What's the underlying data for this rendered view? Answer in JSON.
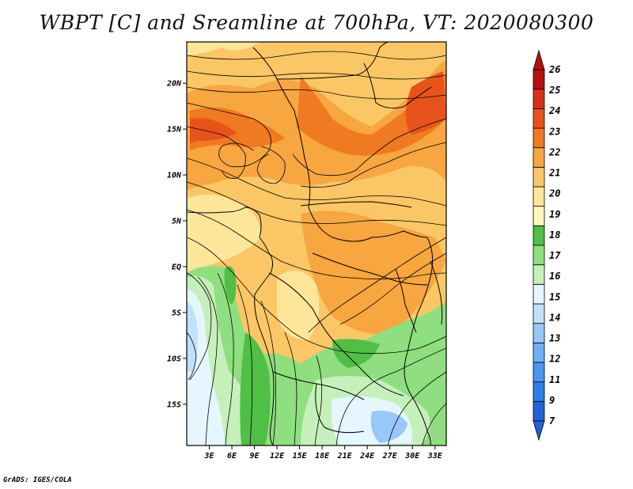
{
  "title": "WBPT [C] and Sreamline at 700hPa, VT: 2020080300",
  "credit": "GrADS: IGES/COLA",
  "map": {
    "lat_ticks": [
      "20N",
      "15N",
      "10N",
      "5N",
      "EQ",
      "5S",
      "10S",
      "15S"
    ],
    "lon_ticks": [
      "3E",
      "6E",
      "9E",
      "12E",
      "15E",
      "18E",
      "21E",
      "24E",
      "27E",
      "30E",
      "33E"
    ],
    "lon_range": [
      0,
      34.5
    ],
    "lat_range": [
      -19.5,
      24.5
    ]
  },
  "colorbar": {
    "labels": [
      "7",
      "9",
      "11",
      "12",
      "13",
      "14",
      "15",
      "16",
      "17",
      "18",
      "19",
      "20",
      "21",
      "22",
      "23",
      "24",
      "25",
      "26"
    ],
    "colors": [
      "#1f65d6",
      "#2f7fe6",
      "#4a97f0",
      "#6db0f5",
      "#97c8f8",
      "#c2e0fb",
      "#e6f6ff",
      "#c6f0bb",
      "#8fde7f",
      "#4fbf45",
      "#fff7b8",
      "#fde59a",
      "#fbc766",
      "#f7a640",
      "#f07a22",
      "#e8531c",
      "#d83018",
      "#b8100f"
    ],
    "extends": "both"
  }
}
